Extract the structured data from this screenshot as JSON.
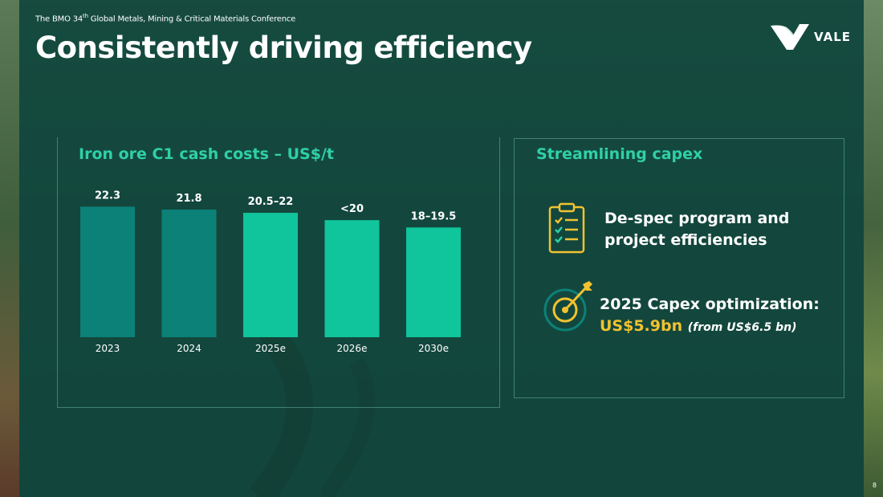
{
  "header": {
    "conference_pre": "The BMO 34",
    "conference_sup": "th",
    "conference_post": " Global Metals, Mining & Critical Materials Conference",
    "title": "Consistently driving efficiency",
    "logo_text": "VALE",
    "page_number": "8"
  },
  "chart_section": {
    "title": "Iron ore C1 cash costs – US$/t"
  },
  "chart_data": {
    "type": "bar",
    "title": "Iron ore C1 cash costs – US$/t",
    "xlabel": "",
    "ylabel": "",
    "categories": [
      "2023",
      "2024",
      "2025e",
      "2026e",
      "2030e"
    ],
    "values": [
      22.3,
      21.8,
      21.25,
      20,
      18.75
    ],
    "value_labels": [
      "22.3",
      "21.8",
      "20.5–22",
      "<20",
      "18–19.5"
    ],
    "ylim": [
      0,
      24
    ],
    "grid": false,
    "colors": [
      "#0c8178",
      "#0c8178",
      "#10c49b",
      "#10c49b",
      "#10c49b"
    ]
  },
  "capex_section": {
    "title": "Streamlining capex",
    "item1": {
      "icon": "clipboard-checklist-icon",
      "text": "De-spec program and project efficiencies"
    },
    "item2": {
      "icon": "target-arrow-icon",
      "text": "2025 Capex optimization:",
      "amount": "US$5.9bn",
      "note": "(from US$6.5 bn)"
    }
  },
  "colors": {
    "accent": "#2fd0a8",
    "highlight": "#f2c230",
    "bar_actual": "#0c8178",
    "bar_estimate": "#10c49b"
  }
}
